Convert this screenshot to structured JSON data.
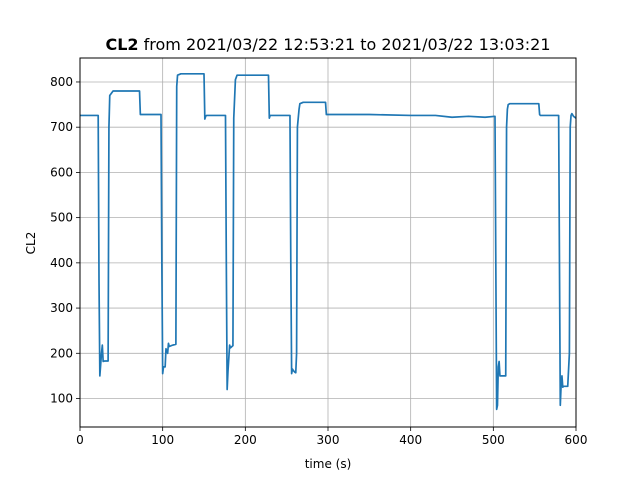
{
  "chart_data": {
    "type": "line",
    "title_bold": "CL2",
    "title_rest": " from 2021/03/22 12:53:21 to 2021/03/22 13:03:21",
    "xlabel": "time (s)",
    "ylabel": "CL2",
    "xlim": [
      0,
      600
    ],
    "ylim": [
      37,
      853
    ],
    "xticks": [
      0,
      100,
      200,
      300,
      400,
      500,
      600
    ],
    "yticks": [
      100,
      200,
      300,
      400,
      500,
      600,
      700,
      800
    ],
    "grid": true,
    "series": [
      {
        "color": "#1f77b4",
        "x": [
          0,
          22,
          23,
          24,
          25,
          26,
          27,
          28,
          30,
          34,
          35,
          36,
          40,
          72,
          73,
          98,
          99,
          100,
          101,
          103,
          104,
          106,
          107,
          108,
          112,
          116,
          117,
          118,
          122,
          150,
          151,
          152,
          153,
          176,
          177,
          178,
          179,
          181,
          182,
          185,
          186,
          188,
          190,
          228,
          229,
          230,
          254,
          255,
          256,
          257,
          258,
          260,
          261,
          262,
          263,
          265,
          266,
          270,
          297,
          298,
          300,
          350,
          400,
          430,
          450,
          470,
          490,
          502,
          503,
          504,
          505,
          506,
          507,
          508,
          509,
          510,
          515,
          516,
          517,
          518,
          520,
          521,
          522,
          525,
          555,
          556,
          557,
          579,
          580,
          581,
          582,
          583,
          584,
          585,
          590,
          592,
          593,
          594,
          595,
          597,
          600
        ],
        "y": [
          726,
          726,
          360,
          150,
          175,
          200,
          218,
          182,
          183,
          183,
          700,
          770,
          780,
          780,
          728,
          728,
          400,
          155,
          170,
          170,
          210,
          200,
          222,
          215,
          218,
          220,
          790,
          815,
          818,
          818,
          718,
          724,
          726,
          726,
          400,
          120,
          160,
          218,
          212,
          217,
          720,
          805,
          815,
          815,
          720,
          726,
          726,
          400,
          155,
          165,
          162,
          158,
          157,
          200,
          700,
          740,
          752,
          755,
          755,
          728,
          728,
          728,
          726,
          726,
          722,
          724,
          722,
          724,
          400,
          76,
          85,
          170,
          182,
          150,
          150,
          150,
          150,
          700,
          740,
          750,
          752,
          752,
          752,
          752,
          752,
          728,
          726,
          726,
          400,
          85,
          130,
          150,
          125,
          127,
          127,
          200,
          700,
          726,
          730,
          724,
          720
        ]
      }
    ]
  }
}
